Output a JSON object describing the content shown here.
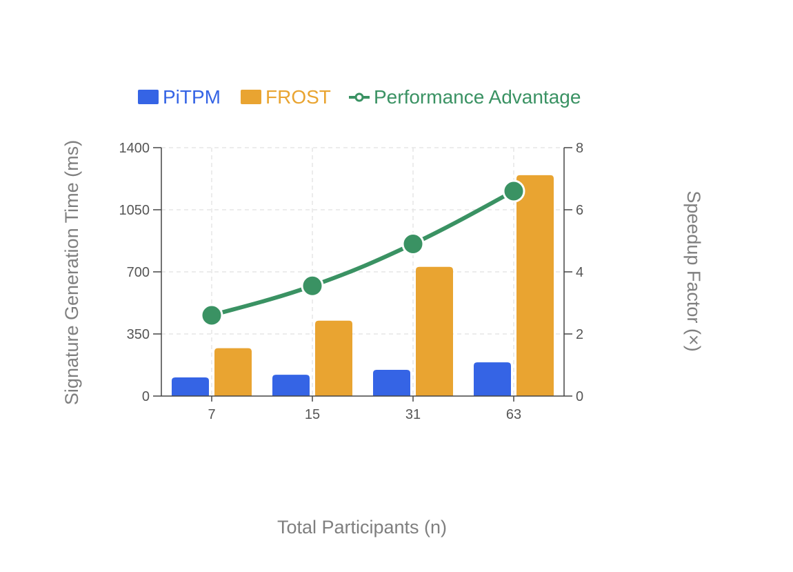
{
  "chart_data": {
    "type": "bar",
    "categories": [
      "7",
      "15",
      "31",
      "63"
    ],
    "series": [
      {
        "name": "PiTPM",
        "type": "bar",
        "axis": "left",
        "color": "#3564e5",
        "values": [
          105,
          120,
          148,
          190
        ]
      },
      {
        "name": "FROST",
        "type": "bar",
        "axis": "left",
        "color": "#e9a431",
        "values": [
          270,
          425,
          728,
          1245
        ]
      },
      {
        "name": "Performance Advantage",
        "type": "line",
        "axis": "right",
        "color": "#3a9263",
        "values": [
          2.6,
          3.55,
          4.9,
          6.6
        ]
      }
    ],
    "title": "",
    "xlabel": "Total Participants (n)",
    "ylabel": "Signature Generation Time (ms)",
    "y2label": "Speedup Factor (×)",
    "ylim": [
      0,
      1400
    ],
    "y2lim": [
      0,
      8
    ],
    "yticks": [
      "0",
      "350",
      "700",
      "1050",
      "1400"
    ],
    "y2ticks": [
      "0",
      "2",
      "4",
      "6",
      "8"
    ],
    "grid": true,
    "legend_position": "top"
  }
}
